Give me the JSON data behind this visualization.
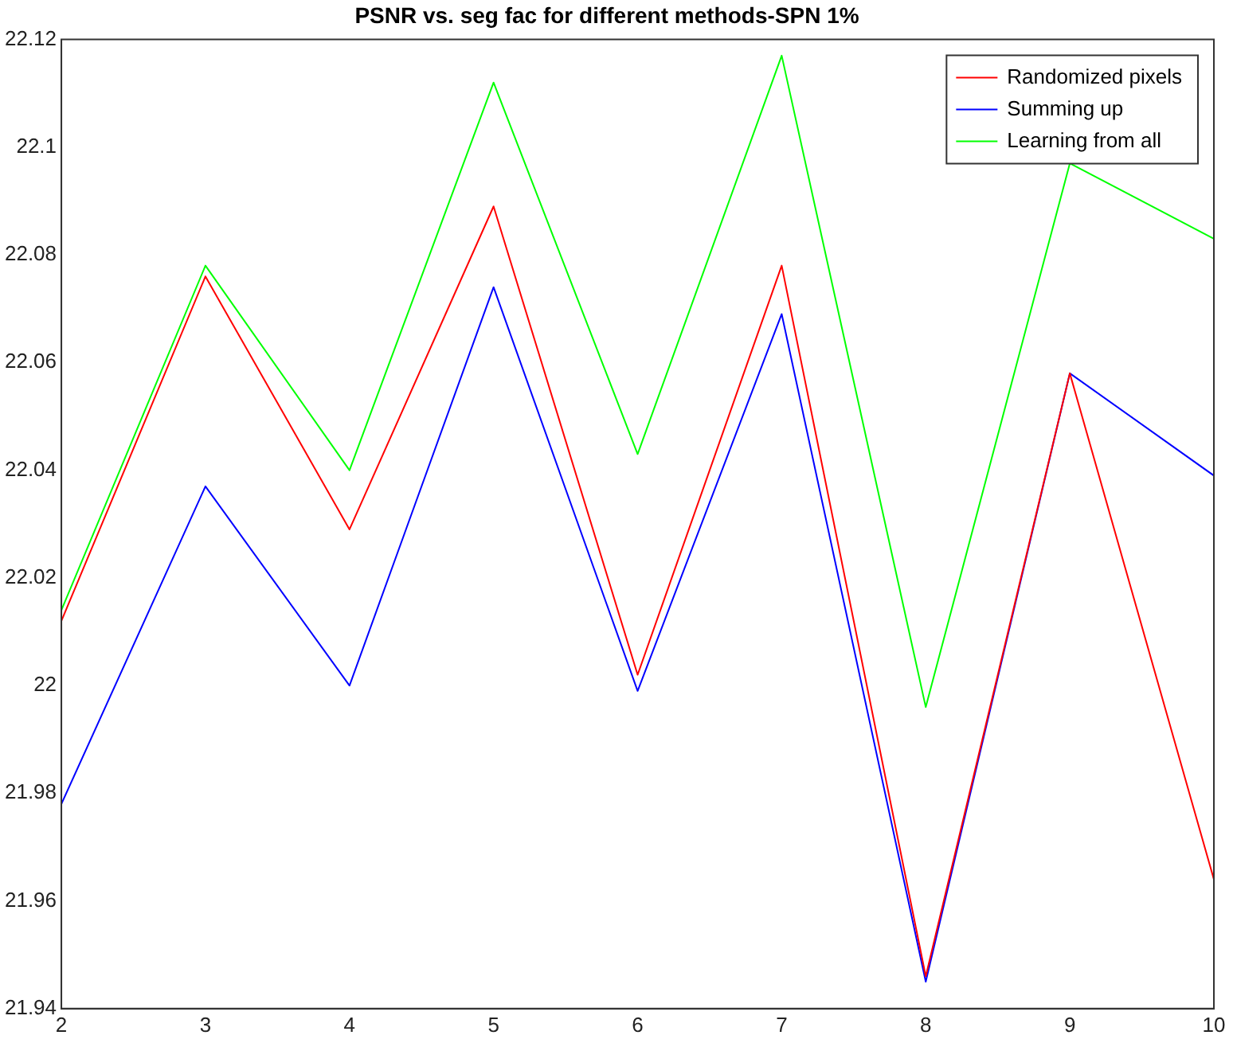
{
  "chart_data": {
    "type": "line",
    "title": "PSNR vs. seg fac for different methods-SPN 1%",
    "x": [
      2,
      3,
      4,
      5,
      6,
      7,
      8,
      9,
      10
    ],
    "series": [
      {
        "name": "Randomized pixels",
        "color": "#ff0000",
        "values": [
          22.012,
          22.076,
          22.029,
          22.089,
          22.002,
          22.078,
          21.946,
          22.058,
          21.964
        ]
      },
      {
        "name": "Summing up",
        "color": "#0000ff",
        "values": [
          21.978,
          22.037,
          22.0,
          22.074,
          21.999,
          22.069,
          21.945,
          22.058,
          22.039
        ]
      },
      {
        "name": "Learning from all",
        "color": "#00ff00",
        "values": [
          22.014,
          22.078,
          22.04,
          22.112,
          22.043,
          22.117,
          21.996,
          22.097,
          22.083
        ]
      }
    ],
    "xlim": [
      2,
      10
    ],
    "xticks": [
      2,
      3,
      4,
      5,
      6,
      7,
      8,
      9,
      10
    ],
    "ylim": [
      21.94,
      22.12
    ],
    "yticks": [
      21.94,
      21.96,
      21.98,
      22,
      22.02,
      22.04,
      22.06,
      22.08,
      22.1,
      22.12
    ],
    "grid": false,
    "legend": "top right",
    "marker": "none",
    "line_style": "solid"
  }
}
